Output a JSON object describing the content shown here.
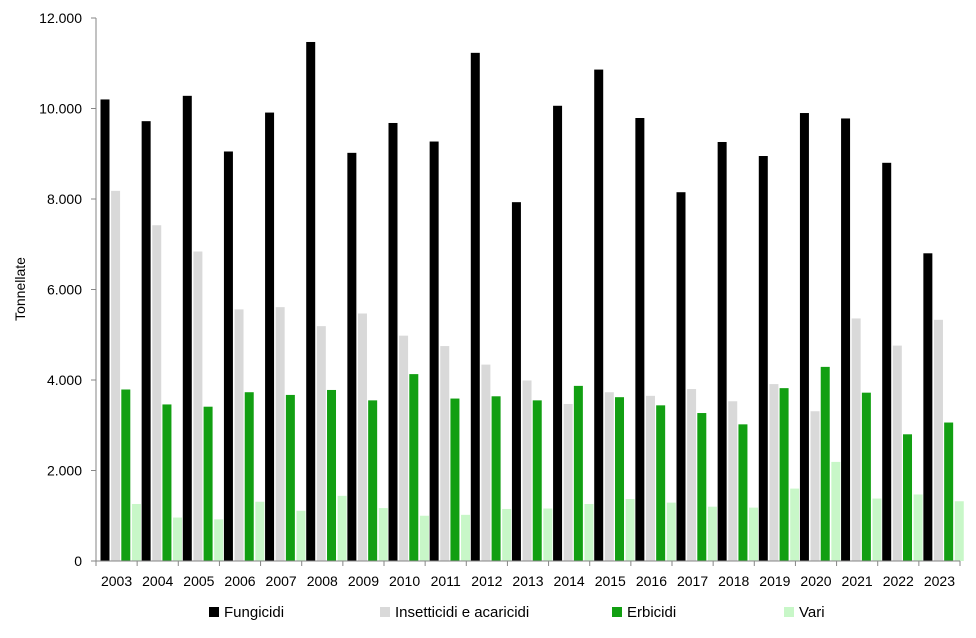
{
  "chart_data": {
    "type": "bar",
    "title": "",
    "xlabel": "",
    "ylabel": "Tonnellate",
    "ylim": [
      0,
      12000
    ],
    "yticks": [
      0,
      2000,
      4000,
      6000,
      8000,
      10000,
      12000
    ],
    "ytick_labels": [
      "0",
      "2.000",
      "4.000",
      "6.000",
      "8.000",
      "10.000",
      "12.000"
    ],
    "grid": false,
    "legend_position": "bottom",
    "categories": [
      "2003",
      "2004",
      "2005",
      "2006",
      "2007",
      "2008",
      "2009",
      "2010",
      "2011",
      "2012",
      "2013",
      "2014",
      "2015",
      "2016",
      "2017",
      "2018",
      "2019",
      "2020",
      "2021",
      "2022",
      "2023"
    ],
    "series": [
      {
        "name": "Fungicidi",
        "color": "#000000",
        "values": [
          10200,
          9720,
          10280,
          9050,
          9910,
          11470,
          9020,
          9680,
          9270,
          11230,
          7930,
          10060,
          10860,
          9790,
          8150,
          9260,
          8950,
          9900,
          9780,
          8800,
          6800
        ]
      },
      {
        "name": "Insetticidi e acaricidi",
        "color": "#d9d9d9",
        "values": [
          8180,
          7420,
          6840,
          5560,
          5610,
          5190,
          5470,
          4980,
          4750,
          4340,
          3990,
          3470,
          3730,
          3650,
          3800,
          3530,
          3910,
          3310,
          5360,
          4760,
          5330
        ]
      },
      {
        "name": "Erbicidi",
        "color": "#129f12",
        "values": [
          3790,
          3460,
          3410,
          3730,
          3670,
          3780,
          3550,
          4130,
          3590,
          3640,
          3550,
          3870,
          3620,
          3440,
          3270,
          3020,
          3820,
          4290,
          3720,
          2800,
          3060
        ]
      },
      {
        "name": "Vari",
        "color": "#c8f7c8",
        "values": [
          1260,
          960,
          920,
          1310,
          1110,
          1440,
          1170,
          1000,
          1020,
          1150,
          1160,
          1260,
          1370,
          1290,
          1200,
          1180,
          1600,
          2190,
          1380,
          1470,
          1320
        ]
      }
    ]
  }
}
